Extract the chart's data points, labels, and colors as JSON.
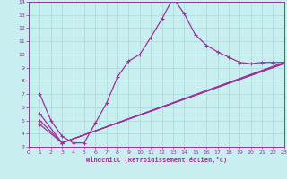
{
  "bg_color": "#c8eef0",
  "grid_color": "#a8d8da",
  "line_color": "#993399",
  "text_color": "#993399",
  "xmin": 0,
  "xmax": 23,
  "ymin": 3,
  "ymax": 14,
  "xticks": [
    0,
    1,
    2,
    3,
    4,
    5,
    6,
    7,
    8,
    9,
    10,
    11,
    12,
    13,
    14,
    15,
    16,
    17,
    18,
    19,
    20,
    21,
    22,
    23
  ],
  "yticks": [
    3,
    4,
    5,
    6,
    7,
    8,
    9,
    10,
    11,
    12,
    13,
    14
  ],
  "xlabel": "Windchill (Refroidissement éolien,°C)",
  "line1_x": [
    1,
    2,
    3,
    4,
    5,
    6,
    7,
    8,
    9,
    10,
    11,
    12,
    13,
    14,
    15,
    16,
    17,
    18,
    19,
    20,
    21,
    22,
    23
  ],
  "line1_y": [
    7.0,
    5.0,
    3.8,
    3.3,
    3.3,
    4.8,
    6.3,
    8.3,
    9.5,
    10.0,
    11.3,
    12.7,
    14.3,
    13.1,
    11.5,
    10.7,
    10.2,
    9.8,
    9.4,
    9.3,
    9.4,
    9.4,
    9.4
  ],
  "line2_x": [
    1,
    3,
    23
  ],
  "line2_y": [
    5.5,
    3.3,
    9.4
  ],
  "line3_x": [
    1,
    3,
    23
  ],
  "line3_y": [
    5.0,
    3.3,
    9.35
  ],
  "line4_x": [
    1,
    3,
    23
  ],
  "line4_y": [
    4.7,
    3.3,
    9.3
  ]
}
